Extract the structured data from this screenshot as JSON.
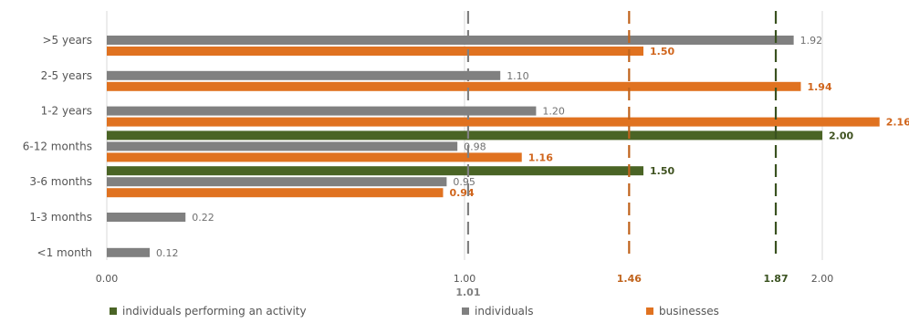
{
  "chart_data": {
    "type": "bar",
    "orientation": "horizontal",
    "title": "",
    "xlabel": "",
    "ylabel": "",
    "xlim": [
      0,
      2.2
    ],
    "x_ticks": [
      {
        "value": 0.0,
        "label": "0.00"
      },
      {
        "value": 1.0,
        "label": "1.00"
      },
      {
        "value": 2.0,
        "label": "2.00"
      }
    ],
    "grid": "vertical lines at ticks",
    "legend_position": "bottom",
    "categories": [
      ">5 years",
      "2-5 years",
      "1-2 years",
      "6-12 months",
      "3-6 months",
      "1-3 months",
      "<1 month"
    ],
    "series": [
      {
        "name": "individuals performing an activity",
        "color": "#4a6425",
        "values": [
          null,
          null,
          null,
          2.0,
          1.5,
          null,
          null
        ],
        "labels": [
          "",
          "",
          "",
          "2.00",
          "1.50",
          "",
          ""
        ]
      },
      {
        "name": "individuals",
        "color": "#808080",
        "values": [
          1.92,
          1.1,
          1.2,
          0.98,
          0.95,
          0.22,
          0.12
        ],
        "labels": [
          "1.92",
          "1.10",
          "1.20",
          "0.98",
          "0.95",
          "0.22",
          "0.12"
        ]
      },
      {
        "name": "businesses",
        "color": "#e07220",
        "values": [
          1.5,
          1.94,
          2.16,
          1.16,
          0.94,
          null,
          null
        ],
        "labels": [
          "1.50",
          "1.94",
          "2.16",
          "1.16",
          "0.94",
          "",
          ""
        ]
      }
    ],
    "reference_lines": [
      {
        "value": 1.01,
        "label": "1.01",
        "color": "#808080"
      },
      {
        "value": 1.46,
        "label": "1.46",
        "color": "#c0631c"
      },
      {
        "value": 1.87,
        "label": "1.87",
        "color": "#3a5220"
      }
    ],
    "colors": {
      "axis_text": "#555555",
      "grid": "#d9d9d9"
    }
  }
}
